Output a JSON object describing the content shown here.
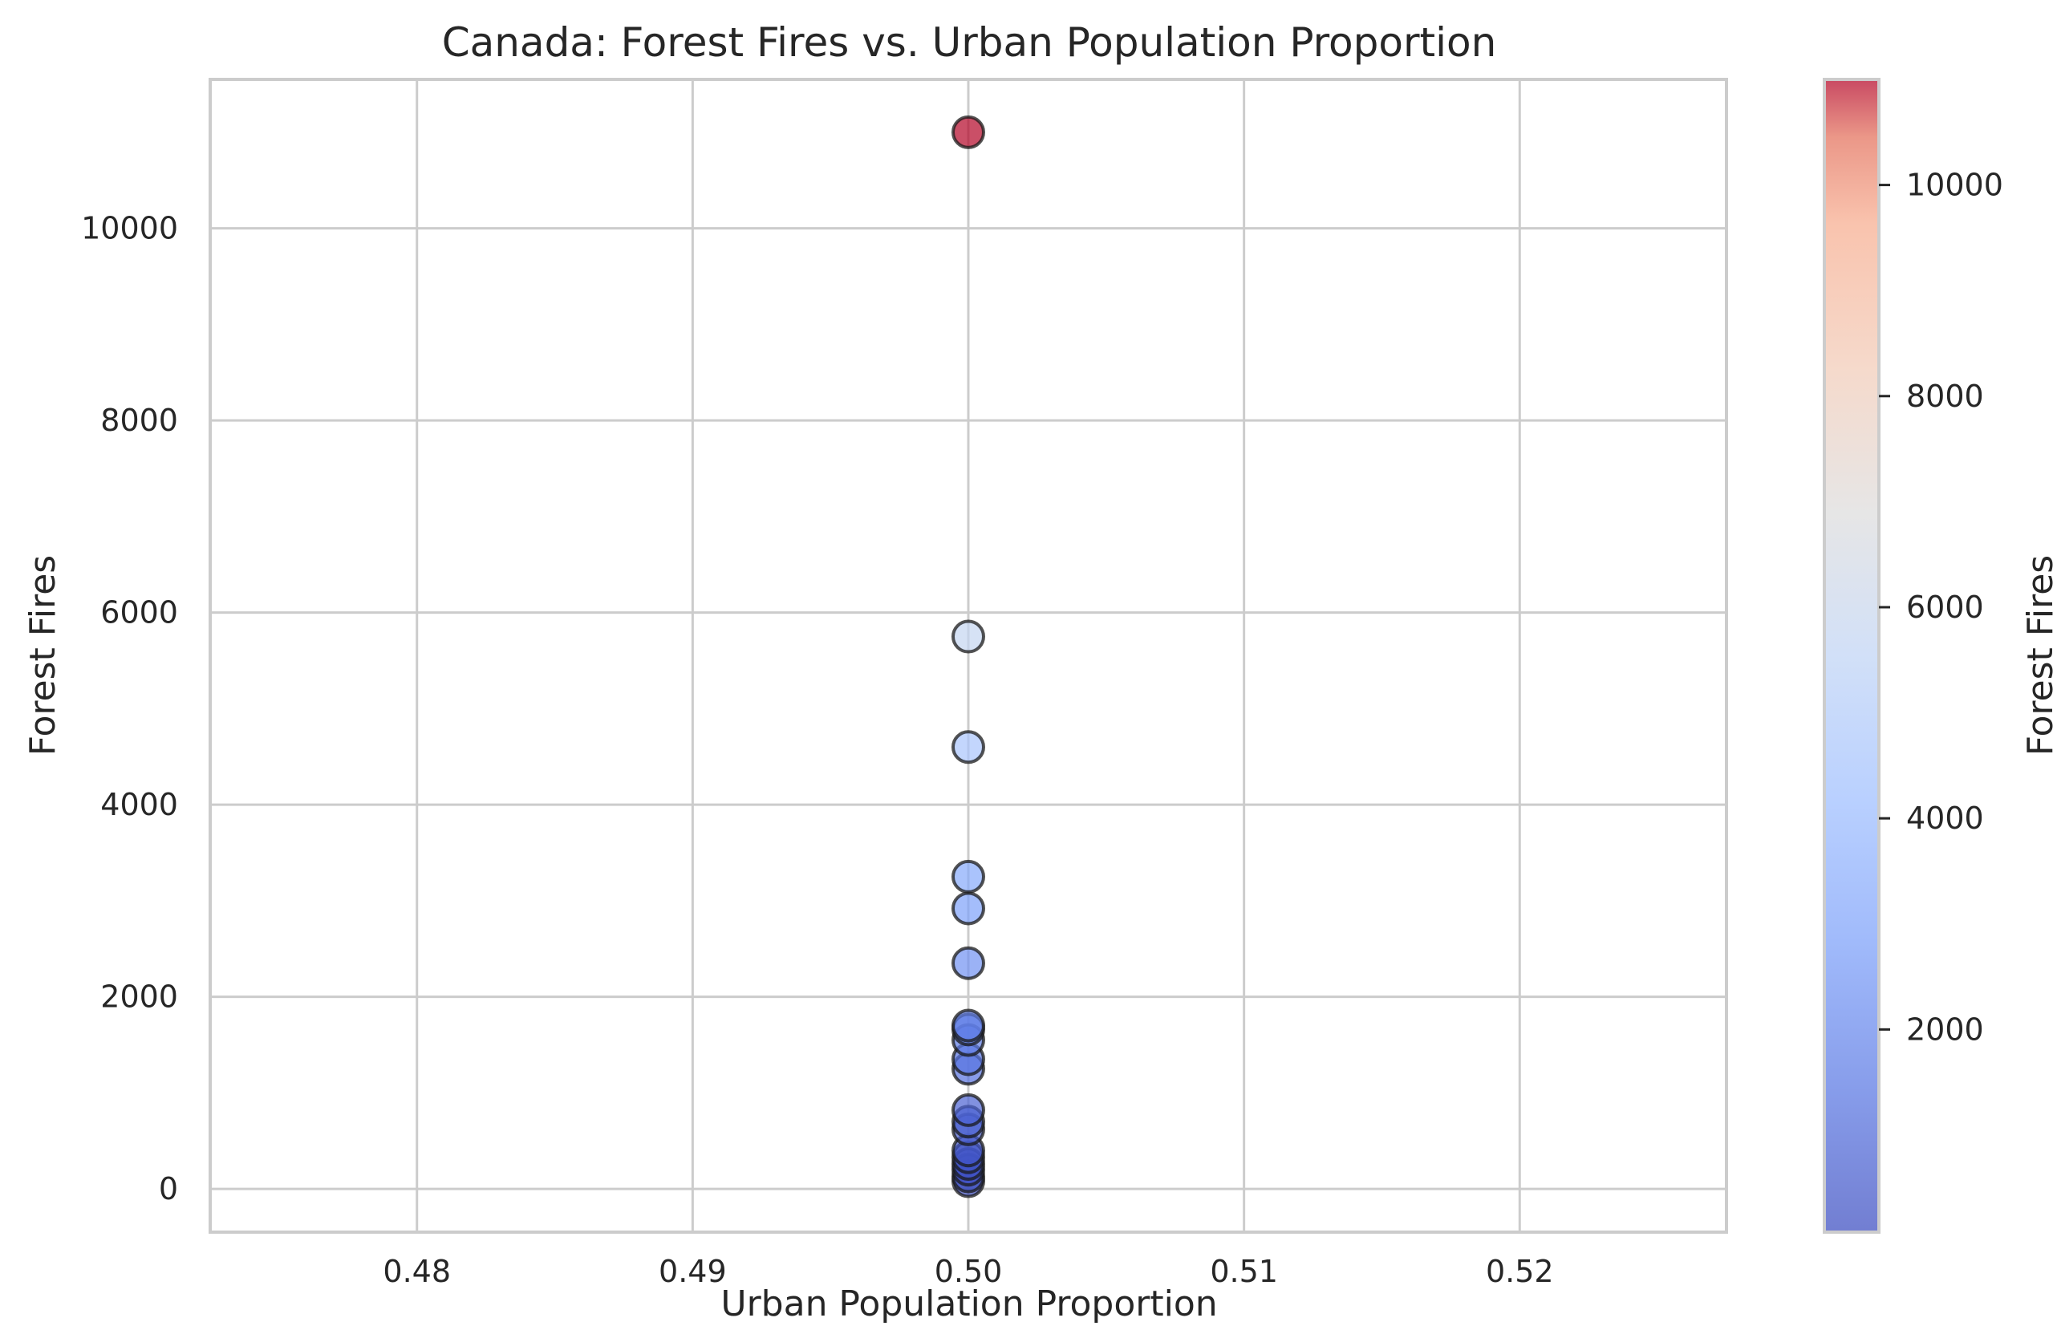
{
  "chart_data": {
    "type": "scatter",
    "title": "Canada: Forest Fires vs. Urban Population Proportion",
    "xlabel": "Urban Population Proportion",
    "ylabel": "Forest Fires",
    "xlim": [
      0.4725,
      0.5275
    ],
    "ylim": [
      -450,
      11550
    ],
    "x_ticks": [
      0.48,
      0.49,
      0.5,
      0.51,
      0.52
    ],
    "x_tick_labels": [
      "0.48",
      "0.49",
      "0.50",
      "0.51",
      "0.52"
    ],
    "y_ticks": [
      0,
      2000,
      4000,
      6000,
      8000,
      10000
    ],
    "y_tick_labels": [
      "0",
      "2000",
      "4000",
      "6000",
      "8000",
      "10000"
    ],
    "grid": true,
    "colormap": "coolwarm",
    "point_alpha": 0.7,
    "points": [
      {
        "x": 0.5,
        "y": 11000
      },
      {
        "x": 0.5,
        "y": 5750
      },
      {
        "x": 0.5,
        "y": 4600
      },
      {
        "x": 0.5,
        "y": 3250
      },
      {
        "x": 0.5,
        "y": 2920
      },
      {
        "x": 0.5,
        "y": 2350
      },
      {
        "x": 0.5,
        "y": 1700
      },
      {
        "x": 0.5,
        "y": 1660
      },
      {
        "x": 0.5,
        "y": 1550
      },
      {
        "x": 0.5,
        "y": 1350
      },
      {
        "x": 0.5,
        "y": 1250
      },
      {
        "x": 0.5,
        "y": 820
      },
      {
        "x": 0.5,
        "y": 700
      },
      {
        "x": 0.5,
        "y": 620
      },
      {
        "x": 0.5,
        "y": 400
      },
      {
        "x": 0.5,
        "y": 330
      },
      {
        "x": 0.5,
        "y": 260
      },
      {
        "x": 0.5,
        "y": 200
      },
      {
        "x": 0.5,
        "y": 130
      },
      {
        "x": 0.5,
        "y": 80
      }
    ],
    "colorbar": {
      "label": "Forest Fires",
      "range": [
        80,
        11000
      ],
      "ticks": [
        2000,
        4000,
        6000,
        8000,
        10000
      ],
      "tick_labels": [
        "2000",
        "4000",
        "6000",
        "8000",
        "10000"
      ]
    }
  }
}
